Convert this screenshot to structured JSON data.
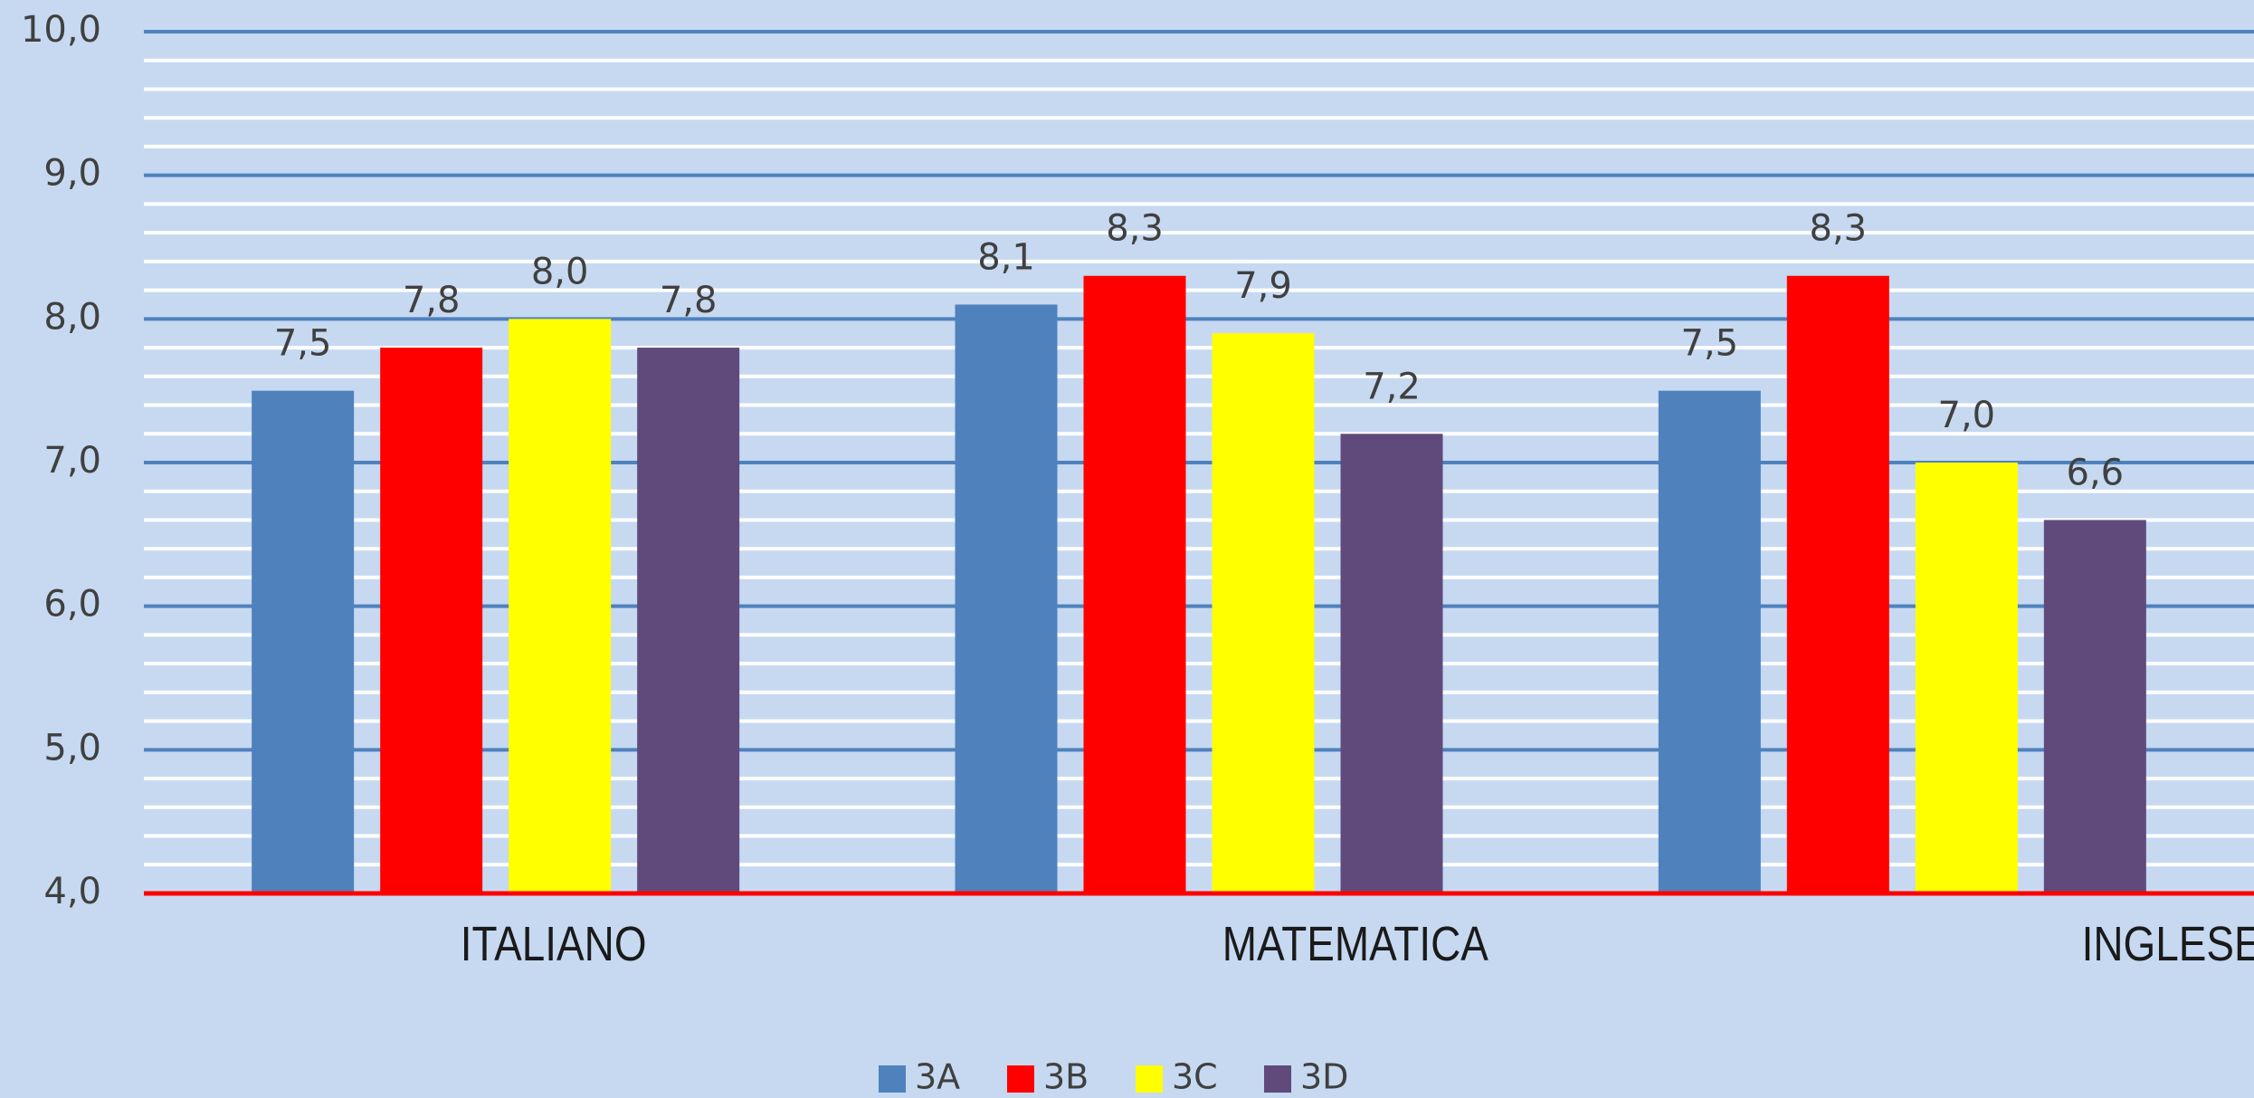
{
  "chart_data": {
    "type": "bar",
    "categories": [
      "ITALIANO",
      "MATEMATICA",
      "INGLESE"
    ],
    "series": [
      {
        "name": "3A",
        "color": "#4f81bd",
        "values": [
          7.5,
          8.1,
          7.5
        ],
        "value_labels": [
          "7,5",
          "8,1",
          "7,5"
        ]
      },
      {
        "name": "3B",
        "color": "#ff0000",
        "values": [
          7.8,
          8.3,
          8.3
        ],
        "value_labels": [
          "7,8",
          "8,3",
          "8,3"
        ]
      },
      {
        "name": "3C",
        "color": "#ffff00",
        "values": [
          8.0,
          7.9,
          7.0
        ],
        "value_labels": [
          "8,0",
          "7,9",
          "7,0"
        ]
      },
      {
        "name": "3D",
        "color": "#604a7b",
        "values": [
          7.8,
          7.2,
          6.6
        ],
        "value_labels": [
          "7,8",
          "7,2",
          "6,6"
        ]
      }
    ],
    "ylim": [
      4,
      10
    ],
    "yticks": [
      {
        "value": 4,
        "label": "4,0"
      },
      {
        "value": 5,
        "label": "5,0"
      },
      {
        "value": 6,
        "label": "6,0"
      },
      {
        "value": 7,
        "label": "7,0"
      },
      {
        "value": 8,
        "label": "8,0"
      },
      {
        "value": 9,
        "label": "9,0"
      },
      {
        "value": 10,
        "label": "10,0"
      }
    ],
    "grid": true,
    "legend": "bottom"
  }
}
